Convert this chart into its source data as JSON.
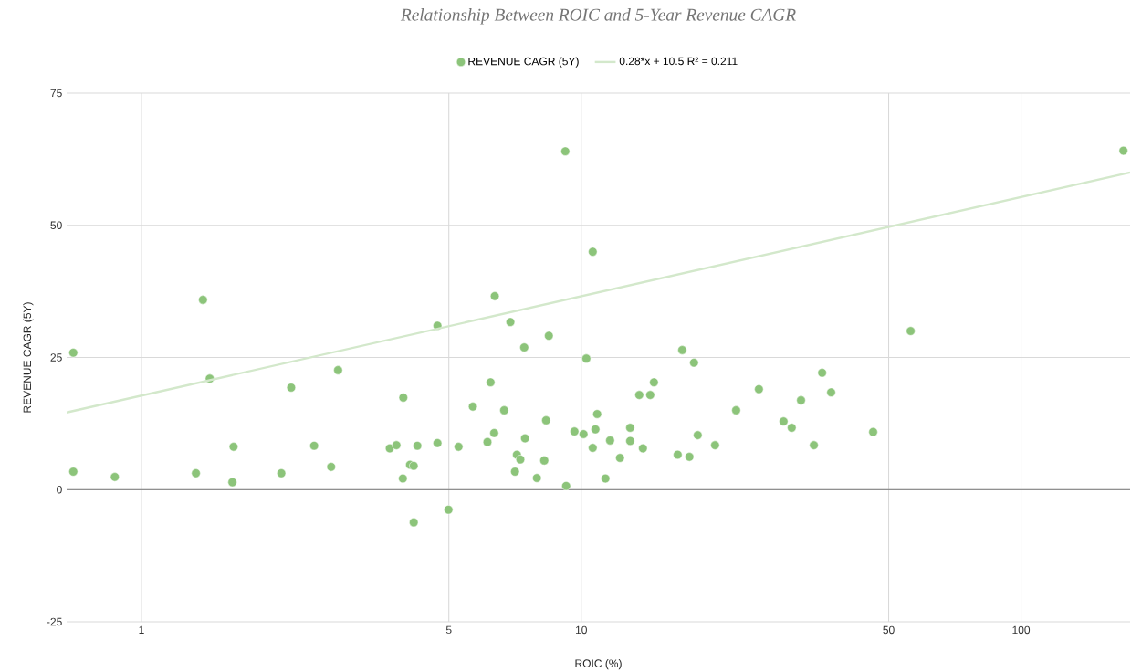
{
  "chart_data": {
    "type": "scatter",
    "title": "Relationship Between ROIC and 5-Year Revenue CAGR",
    "xlabel": "ROIC (%)",
    "ylabel": "REVENUE CAGR (5Y)",
    "log": "x",
    "grid": true,
    "legend": "top",
    "marker": "circle",
    "xlim": [
      0.676,
      177
    ],
    "xticks": [
      1,
      5,
      10,
      50,
      100
    ],
    "ylim": [
      -25,
      75
    ],
    "yticks": [
      -25,
      0,
      25,
      50,
      75
    ],
    "ref_lines": [
      {
        "axis": "y",
        "value": 0,
        "color": "#757575"
      }
    ],
    "series": [
      {
        "name": "REVENUE CAGR (5Y)",
        "color": "#8cc47a",
        "x": [
          0.7,
          0.7,
          0.87,
          1.33,
          1.38,
          1.43,
          1.61,
          1.62,
          2.08,
          2.19,
          2.47,
          2.7,
          2.8,
          3.67,
          3.8,
          3.94,
          3.93,
          4.08,
          4.16,
          4.16,
          4.24,
          4.71,
          4.71,
          4.99,
          5.26,
          5.67,
          6.36,
          6.9,
          8.44,
          7.42,
          10.27,
          16.97,
          18.05,
          6.22,
          14.63,
          13.55,
          14.35,
          6.68,
          8.32,
          10.87,
          9.65,
          10.12,
          10.77,
          12.92,
          6.34,
          6.12,
          7.45,
          11.63,
          12.92,
          10.62,
          13.81,
          18.4,
          20.15,
          16.57,
          17.62,
          12.25,
          7.14,
          7.27,
          8.24,
          7.07,
          7.93,
          9.24,
          11.35,
          9.2,
          10.62,
          25.35,
          22.5,
          28.84,
          30.1,
          31.6,
          35.3,
          37.0,
          33.8,
          46.1,
          56.1,
          170.9
        ],
        "values": [
          25.9,
          3.4,
          2.4,
          3.1,
          35.9,
          21.0,
          1.4,
          8.1,
          3.1,
          19.3,
          8.3,
          4.3,
          22.6,
          7.8,
          8.4,
          17.4,
          2.1,
          4.7,
          4.5,
          -6.2,
          8.3,
          31.0,
          8.8,
          -3.8,
          8.1,
          15.7,
          36.6,
          31.7,
          29.1,
          26.9,
          24.8,
          26.4,
          24.0,
          20.3,
          20.3,
          17.9,
          17.9,
          15.0,
          13.1,
          14.3,
          11.0,
          10.5,
          11.4,
          11.7,
          10.7,
          9.0,
          9.7,
          9.3,
          9.2,
          7.9,
          7.8,
          10.3,
          8.4,
          6.6,
          6.2,
          6.0,
          6.6,
          5.7,
          5.5,
          3.4,
          2.2,
          0.7,
          2.1,
          64.0,
          45.0,
          19.0,
          15.0,
          12.9,
          11.7,
          16.9,
          22.1,
          18.4,
          8.4,
          10.9,
          30.0,
          64.1
        ]
      },
      {
        "name": "0.28*x + 10.5 R² = 0.211",
        "type": "line",
        "color": "#d3e8cb",
        "line_style": "solid",
        "marker": "none",
        "x": [
          0.676,
          177
        ],
        "values": [
          14.6,
          60.0
        ]
      }
    ]
  }
}
